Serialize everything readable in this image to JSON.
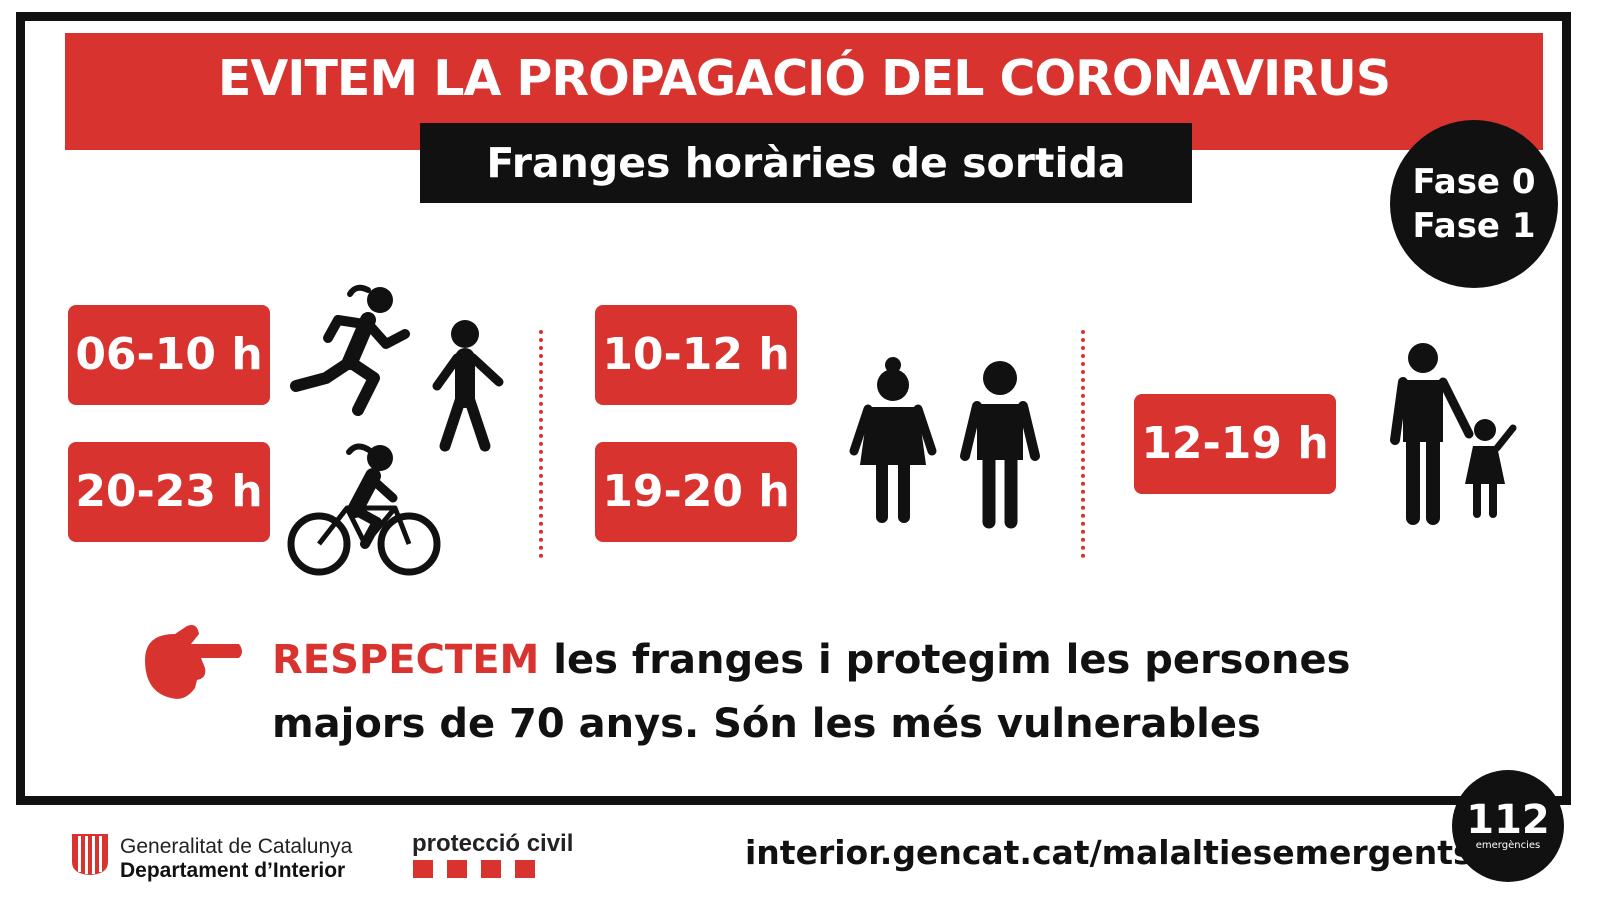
{
  "header": {
    "title": "EVITEM LA PROPAGACIÓ DEL CORONAVIRUS",
    "subtitle": "Franges horàries de sortida"
  },
  "phase_badge": {
    "line1": "Fase 0",
    "line2": "Fase 1"
  },
  "time_slots": [
    {
      "label": "06-10 h"
    },
    {
      "label": "20-23 h"
    },
    {
      "label": "10-12 h"
    },
    {
      "label": "19-20 h"
    },
    {
      "label": "12-19 h"
    }
  ],
  "icons": [
    "runner-icon",
    "walker-icon",
    "cyclist-icon",
    "elderly-woman-icon",
    "elderly-man-icon",
    "adult-with-child-icon",
    "pointing-hand-icon"
  ],
  "message": {
    "highlight": "RESPECTEM",
    "line1_rest": " les franges i protegim les persones",
    "line2": "majors de 70 anys. Són les més vulnerables"
  },
  "footer": {
    "org_line1": "Generalitat de Catalunya",
    "org_line2": "Departament d’Interior",
    "civil_protection": "protecció civil",
    "url": "interior.gencat.cat/malaltiesemergents",
    "emergency_number": "112",
    "emergency_label": "emergències"
  },
  "colors": {
    "accent": "#d8332f",
    "dark": "#111111",
    "background": "#ffffff"
  }
}
